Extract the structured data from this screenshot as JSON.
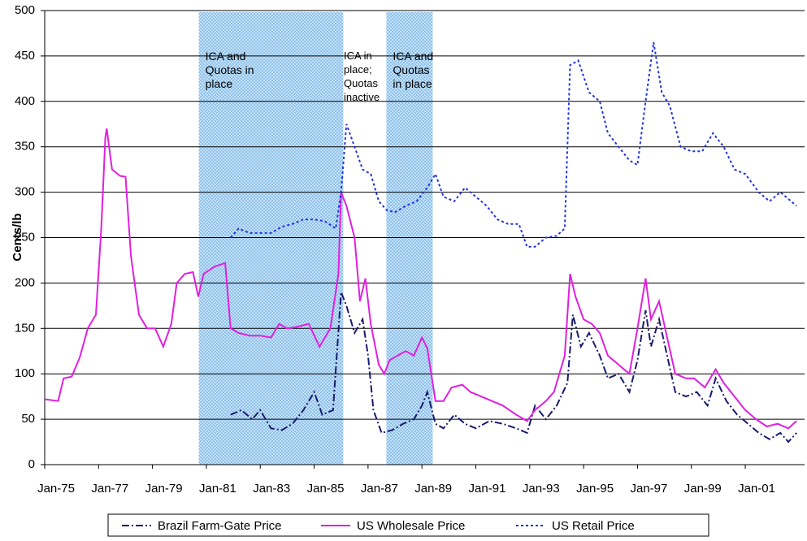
{
  "chart_data": {
    "type": "line",
    "y_label": "Cents/lb",
    "xlim": [
      1975,
      2003.2
    ],
    "ylim": [
      0,
      500
    ],
    "yticks": [
      0,
      50,
      100,
      150,
      200,
      250,
      300,
      350,
      400,
      450,
      500
    ],
    "xticks": [
      {
        "value": 1975,
        "label": "Jan-75"
      },
      {
        "value": 1977,
        "label": "Jan-77"
      },
      {
        "value": 1979,
        "label": "Jan-79"
      },
      {
        "value": 1981,
        "label": "Jan-81"
      },
      {
        "value": 1983,
        "label": "Jan-83"
      },
      {
        "value": 1985,
        "label": "Jan-85"
      },
      {
        "value": 1987,
        "label": "Jan-87"
      },
      {
        "value": 1989,
        "label": "Jan-89"
      },
      {
        "value": 1991,
        "label": "Jan-91"
      },
      {
        "value": 1993,
        "label": "Jan-93"
      },
      {
        "value": 1995,
        "label": "Jan-95"
      },
      {
        "value": 1997,
        "label": "Jan-97"
      },
      {
        "value": 1999,
        "label": "Jan-99"
      },
      {
        "value": 2001,
        "label": "Jan-01"
      }
    ],
    "grid": true,
    "legend": "bottom",
    "shaded_regions": [
      {
        "start": 1980.72,
        "end": 1986.08,
        "label": [
          "ICA and",
          "Quotas in",
          "place"
        ]
      },
      {
        "start": 1987.68,
        "end": 1989.4,
        "label": [
          "ICA and",
          "Quotas",
          "in place"
        ]
      }
    ],
    "annotations": [
      {
        "x": 1986.1,
        "label": [
          "ICA in",
          "place;",
          "Quotas",
          "inactive"
        ]
      }
    ],
    "series": [
      {
        "name": "Brazil Farm-Gate Price",
        "color": "#1a1a6e",
        "dash": "9,3,2,3",
        "x": [
          1981.9,
          1982.3,
          1982.7,
          1983.0,
          1983.4,
          1983.8,
          1984.2,
          1984.6,
          1985.0,
          1985.3,
          1985.7,
          1986.0,
          1986.2,
          1986.5,
          1986.8,
          1987.0,
          1987.2,
          1987.5,
          1987.9,
          1988.3,
          1988.7,
          1989.0,
          1989.2,
          1989.5,
          1989.8,
          1990.2,
          1990.6,
          1991.0,
          1991.5,
          1992.0,
          1992.5,
          1992.9,
          1993.2,
          1993.6,
          1994.0,
          1994.4,
          1994.6,
          1994.9,
          1995.2,
          1995.6,
          1995.9,
          1996.3,
          1996.7,
          1997.0,
          1997.3,
          1997.5,
          1997.8,
          1998.1,
          1998.4,
          1998.8,
          1999.2,
          1999.6,
          1999.9,
          2000.3,
          2000.7,
          2001.1,
          2001.5,
          2001.9,
          2002.3,
          2002.6,
          2002.9
        ],
        "values": [
          55,
          60,
          50,
          60,
          40,
          38,
          45,
          60,
          80,
          55,
          60,
          190,
          175,
          145,
          160,
          120,
          60,
          35,
          38,
          45,
          50,
          65,
          80,
          45,
          40,
          55,
          45,
          40,
          48,
          45,
          40,
          35,
          65,
          50,
          65,
          90,
          165,
          130,
          145,
          120,
          95,
          100,
          80,
          115,
          170,
          130,
          160,
          120,
          80,
          75,
          80,
          65,
          95,
          70,
          55,
          45,
          35,
          28,
          35,
          25,
          35
        ]
      },
      {
        "name": "US Wholesale Price",
        "color": "#e020e0",
        "dash": "",
        "x": [
          1975.0,
          1975.5,
          1975.7,
          1976.0,
          1976.3,
          1976.6,
          1976.9,
          1977.1,
          1977.25,
          1977.3,
          1977.5,
          1977.8,
          1978.0,
          1978.2,
          1978.5,
          1978.8,
          1979.1,
          1979.4,
          1979.7,
          1979.9,
          1980.2,
          1980.5,
          1980.7,
          1980.9,
          1981.3,
          1981.7,
          1981.9,
          1982.2,
          1982.6,
          1983.0,
          1983.4,
          1983.7,
          1984.0,
          1984.4,
          1984.8,
          1985.2,
          1985.6,
          1985.9,
          1986.0,
          1986.2,
          1986.5,
          1986.7,
          1986.9,
          1987.1,
          1987.4,
          1987.6,
          1987.8,
          1988.1,
          1988.4,
          1988.7,
          1989.0,
          1989.2,
          1989.5,
          1989.8,
          1990.1,
          1990.5,
          1990.8,
          1991.2,
          1991.6,
          1992.0,
          1992.5,
          1992.9,
          1993.2,
          1993.6,
          1993.9,
          1994.3,
          1994.5,
          1994.7,
          1995.0,
          1995.3,
          1995.6,
          1995.9,
          1996.3,
          1996.7,
          1997.0,
          1997.3,
          1997.5,
          1997.8,
          1998.1,
          1998.4,
          1998.8,
          1999.1,
          1999.5,
          1999.9,
          2000.2,
          2000.6,
          2001.0,
          2001.4,
          2001.8,
          2002.2,
          2002.6,
          2002.9
        ],
        "values": [
          72,
          70,
          95,
          97,
          118,
          150,
          165,
          260,
          360,
          370,
          325,
          318,
          317,
          230,
          165,
          150,
          150,
          130,
          155,
          200,
          210,
          212,
          185,
          210,
          218,
          222,
          150,
          145,
          142,
          142,
          140,
          155,
          150,
          152,
          155,
          130,
          150,
          210,
          300,
          285,
          250,
          180,
          205,
          155,
          110,
          100,
          115,
          120,
          125,
          120,
          140,
          128,
          70,
          70,
          85,
          88,
          80,
          75,
          70,
          65,
          55,
          48,
          60,
          70,
          80,
          120,
          210,
          185,
          160,
          155,
          145,
          120,
          110,
          100,
          150,
          205,
          160,
          180,
          140,
          100,
          95,
          95,
          85,
          105,
          90,
          75,
          60,
          50,
          42,
          45,
          40,
          48
        ]
      },
      {
        "name": "US Retail Price",
        "color": "#2233dd",
        "dash": "3,3",
        "x": [
          1981.9,
          1982.2,
          1982.6,
          1983.0,
          1983.4,
          1983.8,
          1984.2,
          1984.6,
          1985.0,
          1985.4,
          1985.8,
          1986.0,
          1986.2,
          1986.5,
          1986.8,
          1987.1,
          1987.4,
          1987.7,
          1988.0,
          1988.4,
          1988.8,
          1989.2,
          1989.5,
          1989.8,
          1990.2,
          1990.6,
          1991.0,
          1991.4,
          1991.8,
          1992.2,
          1992.6,
          1992.9,
          1993.2,
          1993.6,
          1994.0,
          1994.3,
          1994.5,
          1994.8,
          1995.2,
          1995.6,
          1995.9,
          1996.3,
          1996.7,
          1997.0,
          1997.3,
          1997.6,
          1997.9,
          1998.2,
          1998.6,
          1999.0,
          1999.4,
          1999.8,
          2000.2,
          2000.6,
          2001.0,
          2001.5,
          2001.9,
          2002.3,
          2002.9
        ],
        "values": [
          250,
          260,
          255,
          255,
          255,
          262,
          265,
          270,
          270,
          268,
          260,
          300,
          375,
          350,
          325,
          320,
          290,
          280,
          278,
          285,
          290,
          305,
          320,
          295,
          290,
          305,
          295,
          285,
          270,
          265,
          265,
          240,
          240,
          250,
          252,
          260,
          440,
          445,
          410,
          400,
          365,
          350,
          335,
          330,
          400,
          465,
          410,
          395,
          350,
          345,
          345,
          365,
          350,
          325,
          320,
          300,
          290,
          300,
          285
        ]
      }
    ]
  }
}
